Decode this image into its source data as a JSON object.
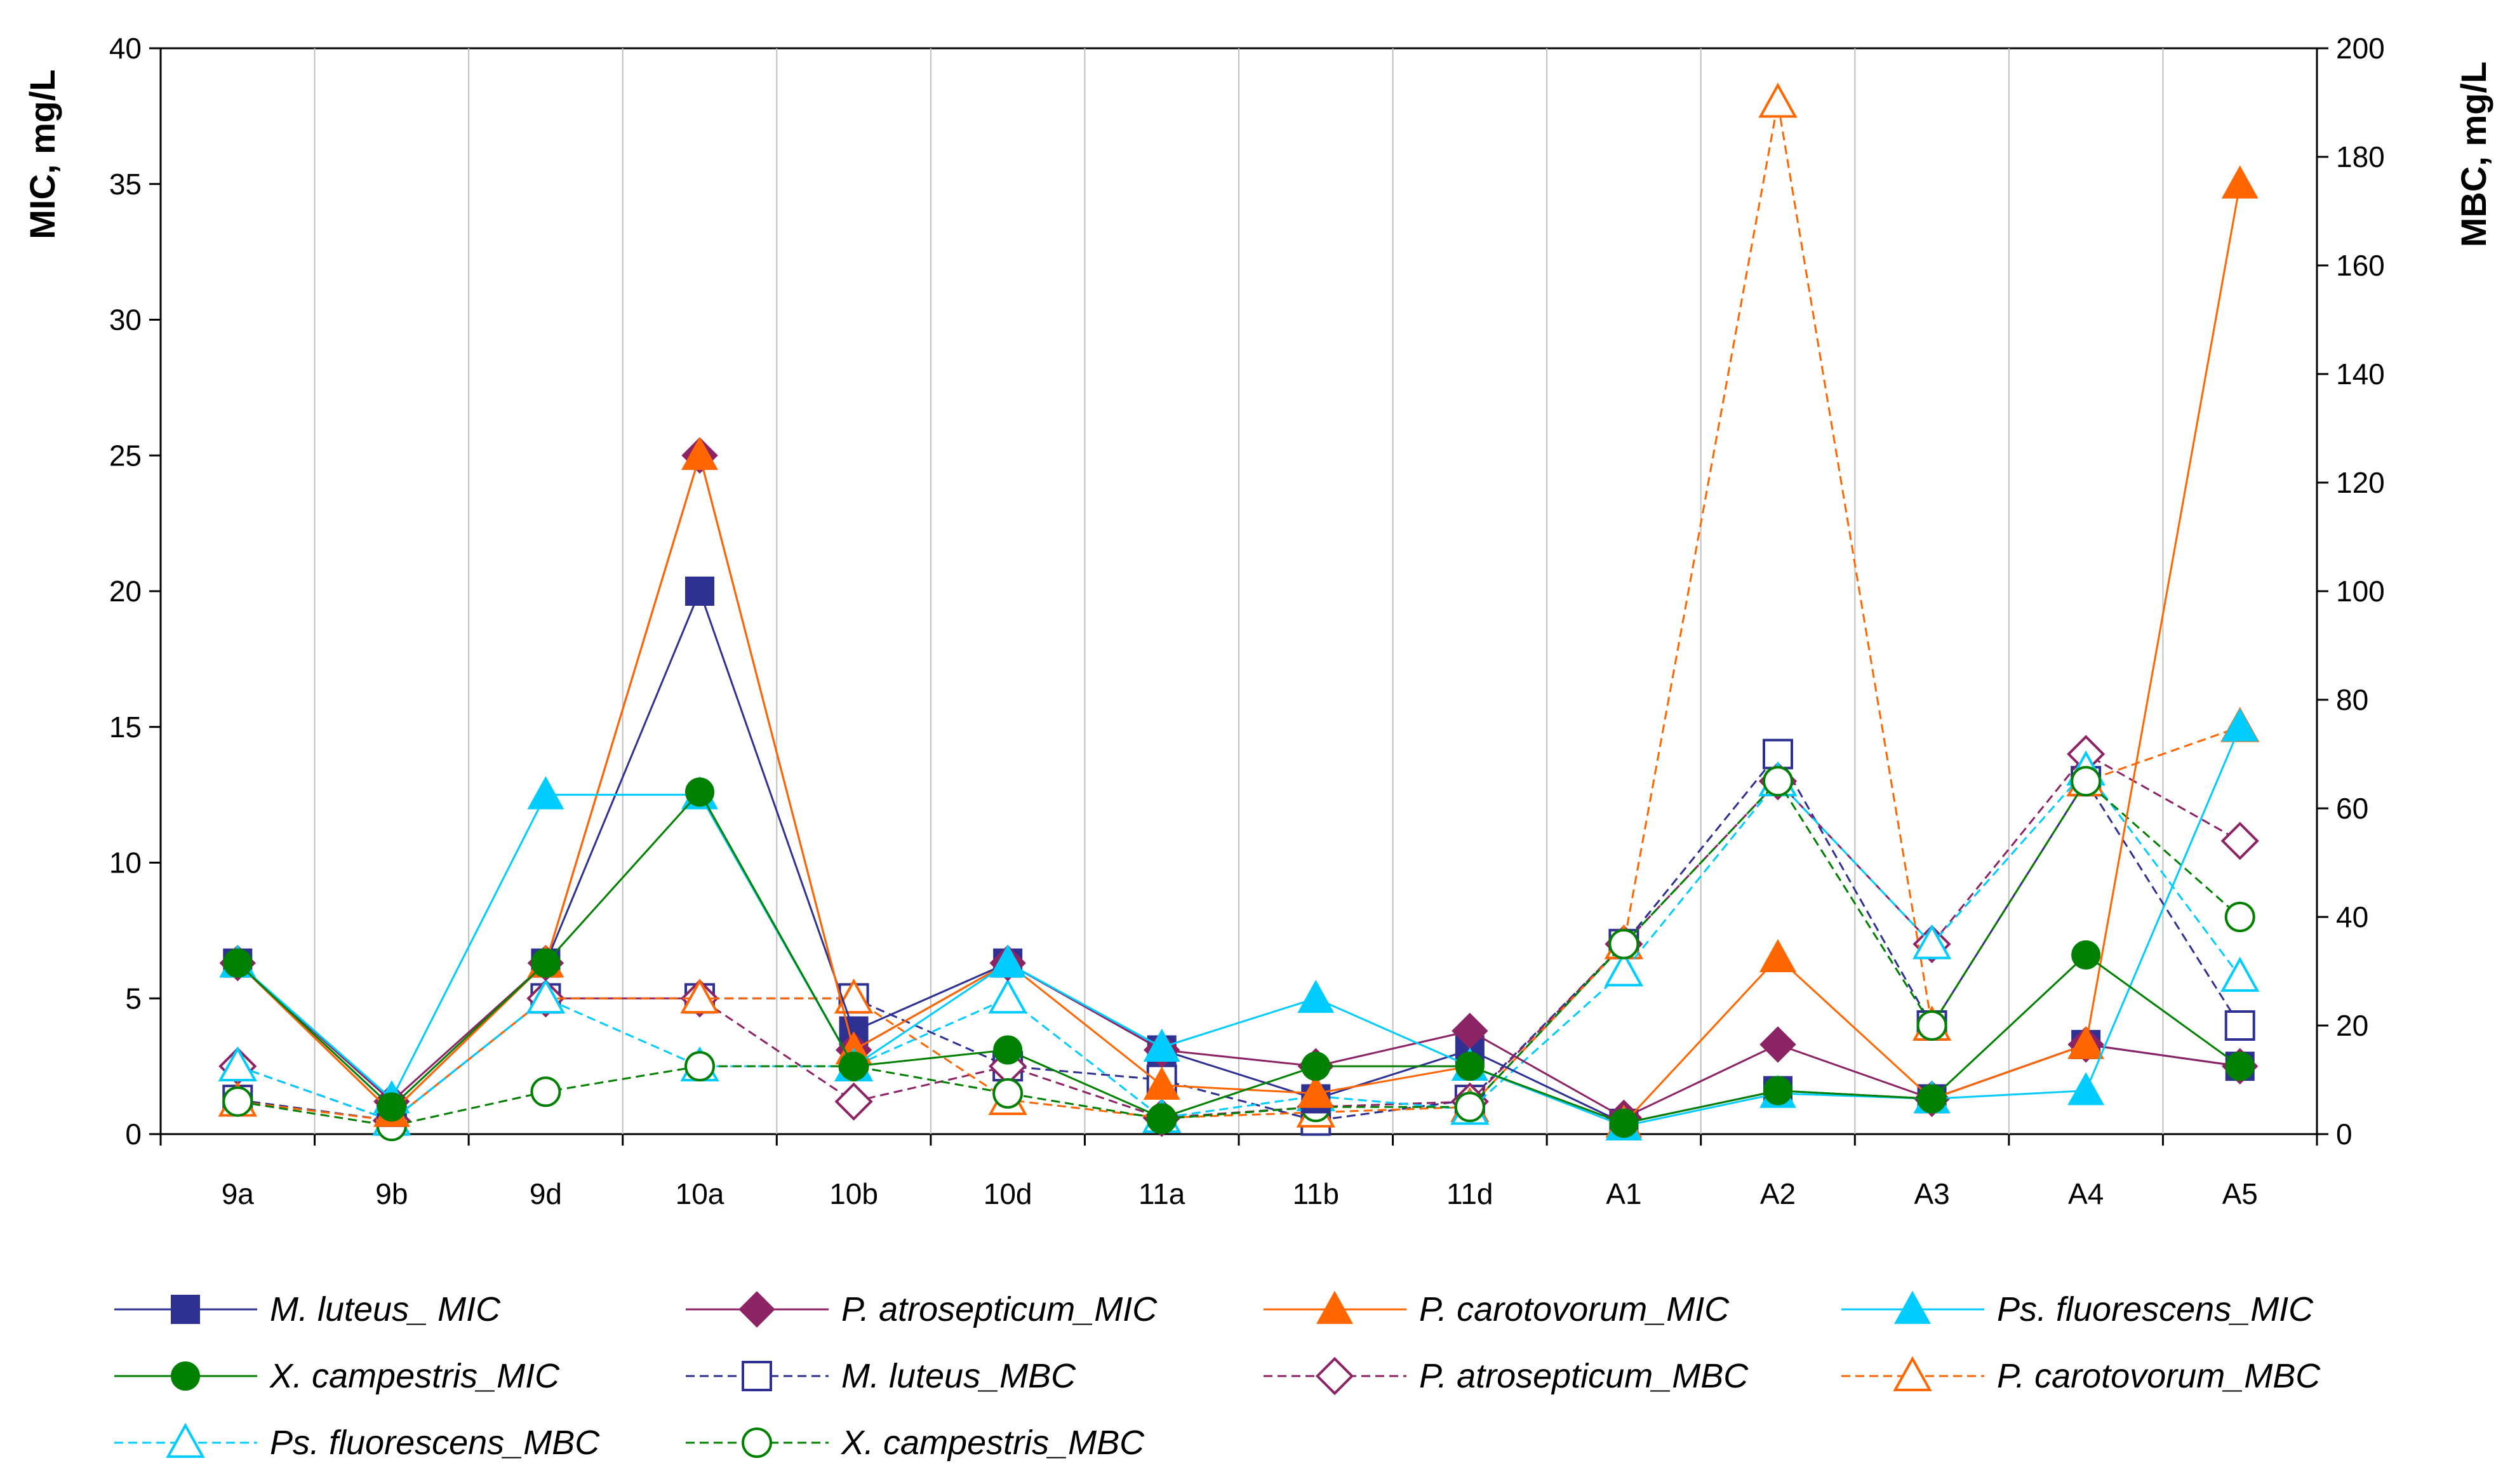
{
  "chart_data": {
    "type": "line",
    "title": "",
    "xlabel": "",
    "ylabel": "MIC, mg/L",
    "y2label": "MBC, mg/L",
    "ylim": [
      0,
      40
    ],
    "y2lim": [
      0,
      200
    ],
    "yticks": [
      "0",
      "5",
      "10",
      "15",
      "20",
      "25",
      "30",
      "35",
      "40"
    ],
    "y2ticks": [
      "0",
      "20",
      "40",
      "60",
      "80",
      "100",
      "120",
      "140",
      "160",
      "180",
      "200"
    ],
    "grid": "vertical",
    "legend_position": "bottom",
    "categories": [
      "9a",
      "9b",
      "9d",
      "10a",
      "10b",
      "10d",
      "11a",
      "11b",
      "11d",
      "A1",
      "A2",
      "A3",
      "A4",
      "A5"
    ],
    "series": [
      {
        "name": "M. luteus_ MIC",
        "axis": "left",
        "color": "#2E3192",
        "marker": "square",
        "filled": true,
        "dashed": false,
        "values": [
          6.3,
          0.8,
          6.3,
          20,
          3.8,
          6.3,
          3.1,
          1.3,
          3.1,
          0.4,
          1.6,
          1.3,
          3.3,
          2.5
        ]
      },
      {
        "name": "P. atrosepticum_MIC",
        "axis": "left",
        "color": "#8B2365",
        "marker": "diamond",
        "filled": true,
        "dashed": false,
        "values": [
          6.3,
          1.2,
          6.3,
          25,
          3.1,
          6.3,
          3.1,
          2.5,
          3.8,
          0.6,
          3.3,
          1.3,
          3.3,
          2.5
        ]
      },
      {
        "name": "P. carotovorum_MIC",
        "axis": "left",
        "color": "#FF6600",
        "marker": "triangle",
        "filled": true,
        "dashed": false,
        "values": [
          6.3,
          0.8,
          6.3,
          25,
          3.1,
          6.3,
          1.8,
          1.5,
          2.5,
          0.4,
          6.5,
          1.3,
          3.3,
          35
        ]
      },
      {
        "name": "Ps. fluorescens_MIC",
        "axis": "left",
        "color": "#00CCFF",
        "marker": "triangle",
        "filled": true,
        "dashed": false,
        "values": [
          6.3,
          1.3,
          12.5,
          12.5,
          2.5,
          6.3,
          3.2,
          5.0,
          2.5,
          0.3,
          1.5,
          1.3,
          1.6,
          15
        ]
      },
      {
        "name": "X. campestris_MIC",
        "axis": "left",
        "color": "#008000",
        "marker": "circle",
        "filled": true,
        "dashed": false,
        "values": [
          6.3,
          1.0,
          6.3,
          12.6,
          2.5,
          3.1,
          0.6,
          2.5,
          2.5,
          0.4,
          1.6,
          1.3,
          6.6,
          2.5
        ]
      },
      {
        "name": "M. luteus_MBC",
        "axis": "right",
        "color": "#2E3192",
        "marker": "square",
        "filled": false,
        "dashed": true,
        "values": [
          6.3,
          2.5,
          25,
          25,
          25,
          12.5,
          10,
          2.5,
          6.3,
          35,
          70,
          20,
          65,
          20
        ]
      },
      {
        "name": "P. atrosepticum_MBC",
        "axis": "right",
        "color": "#8B2365",
        "marker": "diamond",
        "filled": false,
        "dashed": true,
        "values": [
          12.5,
          2.5,
          25,
          25,
          6,
          12.5,
          3,
          5,
          6,
          35,
          65,
          35,
          70,
          54
        ]
      },
      {
        "name": "P. carotovorum_MBC",
        "axis": "right",
        "color": "#FF6600",
        "marker": "triangle",
        "filled": false,
        "dashed": true,
        "values": [
          6,
          2.5,
          25,
          25,
          25,
          6.3,
          3,
          4,
          5,
          35,
          190,
          20,
          65,
          75
        ]
      },
      {
        "name": "Ps. fluorescens_MBC",
        "axis": "right",
        "color": "#00CCFF",
        "marker": "triangle",
        "filled": false,
        "dashed": true,
        "values": [
          12.5,
          2.5,
          25,
          12.5,
          12.5,
          25,
          3,
          7,
          4.5,
          30,
          65,
          35,
          67,
          29
        ]
      },
      {
        "name": "X. campestris_MBC",
        "axis": "right",
        "color": "#008000",
        "marker": "circle",
        "filled": false,
        "dashed": true,
        "values": [
          6,
          1.5,
          7.8,
          12.5,
          12.5,
          7.5,
          2.8,
          5,
          5,
          35,
          65,
          20,
          65,
          40
        ]
      }
    ]
  }
}
